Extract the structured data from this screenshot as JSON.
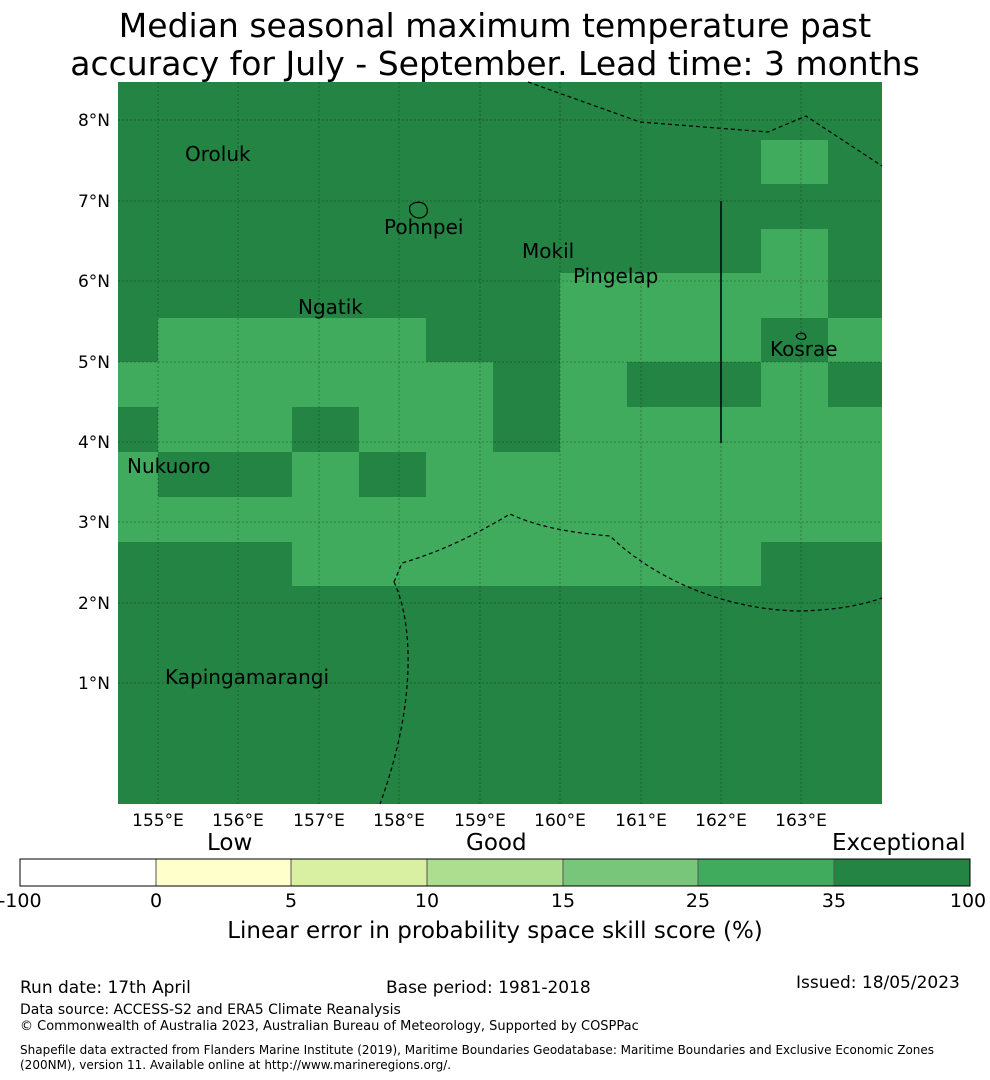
{
  "title": {
    "line1": "Median seasonal maximum temperature past",
    "line2": "accuracy for July - September. Lead time: 3 months"
  },
  "map": {
    "lat_labels": [
      "8°N",
      "7°N",
      "6°N",
      "5°N",
      "4°N",
      "3°N",
      "2°N",
      "1°N"
    ],
    "lon_labels": [
      "155°E",
      "156°E",
      "157°E",
      "158°E",
      "159°E",
      "160°E",
      "161°E",
      "162°E",
      "163°E"
    ],
    "places": [
      "Oroluk",
      "Pohnpei",
      "Mokil",
      "Pingelap",
      "Ngatik",
      "Kosrae",
      "Nukuoro",
      "Kapingamarangi"
    ]
  },
  "colorbar": {
    "words": {
      "low": "Low",
      "good": "Good",
      "exceptional": "Exceptional"
    },
    "ticks": [
      "-100",
      "0",
      "5",
      "10",
      "15",
      "25",
      "35",
      "100"
    ],
    "colors": [
      "#ffffff",
      "#ffffcc",
      "#d9f0a3",
      "#addd8e",
      "#78c679",
      "#41ab5d",
      "#238443"
    ],
    "label": "Linear error in probability space skill score (%)"
  },
  "grid_colors": {
    "exceptional": "#238443",
    "very_good": "#41ab5d"
  },
  "footer": {
    "run_date": "Run date: 17th April",
    "base_period": "Base period: 1981-2018",
    "issued": "Issued: 18/05/2023",
    "data_source": "Data source: ACCESS-S2 and ERA5 Climate Reanalysis",
    "copyright": "© Commonwealth of Australia 2023, Australian Bureau of Meteorology, Supported by COSPPac",
    "shapefile_line1": "Shapefile data extracted from Flanders Marine Institute (2019), Maritime Boundaries Geodatabase: Maritime Boundaries and Exclusive Economic Zones",
    "shapefile_line2": "(200NM), version 11. Available online at http://www.marineregions.org/."
  }
}
